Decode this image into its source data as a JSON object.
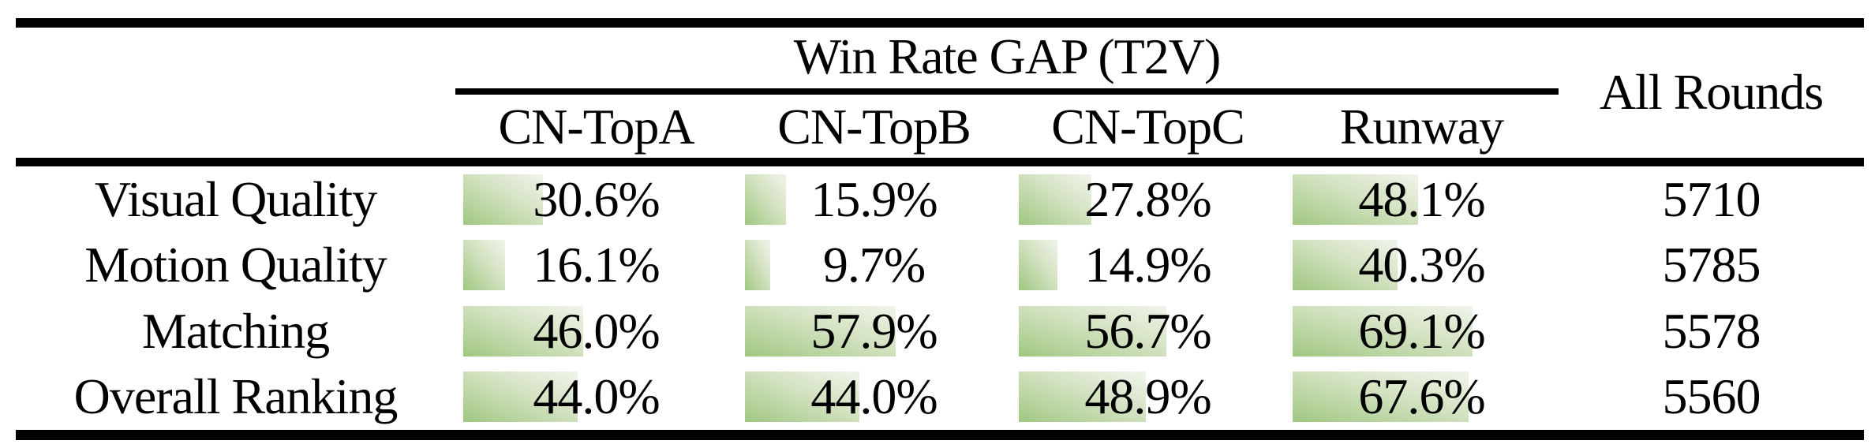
{
  "colors": {
    "background": "#ffffff",
    "text": "#000000",
    "rule": "#000000",
    "bar_gradient_start": "#a0c781",
    "bar_gradient_mid": "#d3e2c1",
    "bar_gradient_end": "#f0f4eb"
  },
  "table": {
    "group_header": "Win Rate GAP (T2V)",
    "all_rounds_header": "All Rounds",
    "columns": [
      "CN-TopA",
      "CN-TopB",
      "CN-TopC",
      "Runway"
    ],
    "rows": [
      {
        "label": "Visual Quality",
        "values": [
          "30.6%",
          "15.9%",
          "27.8%",
          "48.1%"
        ],
        "all_rounds": "5710"
      },
      {
        "label": "Motion Quality",
        "values": [
          "16.1%",
          "9.7%",
          "14.9%",
          "40.3%"
        ],
        "all_rounds": "5785"
      },
      {
        "label": "Matching",
        "values": [
          "46.0%",
          "57.9%",
          "56.7%",
          "69.1%"
        ],
        "all_rounds": "5578"
      },
      {
        "label": "Overall Ranking",
        "values": [
          "44.0%",
          "44.0%",
          "48.9%",
          "67.6%"
        ],
        "all_rounds": "5560"
      }
    ]
  },
  "chart_data": {
    "type": "table",
    "title": "Win Rate GAP (T2V)",
    "row_labels": [
      "Visual Quality",
      "Motion Quality",
      "Matching",
      "Overall Ranking"
    ],
    "columns": [
      "CN-TopA",
      "CN-TopB",
      "CN-TopC",
      "Runway",
      "All Rounds"
    ],
    "values": [
      [
        30.6,
        15.9,
        27.8,
        48.1,
        5710
      ],
      [
        16.1,
        9.7,
        14.9,
        40.3,
        5785
      ],
      [
        46.0,
        57.9,
        56.7,
        69.1,
        5578
      ],
      [
        44.0,
        44.0,
        48.9,
        67.6,
        5560
      ]
    ],
    "layout_hints": {
      "win_rate_cells_have_green_data_bars": true,
      "bar_full_scale_percent": 100
    }
  }
}
